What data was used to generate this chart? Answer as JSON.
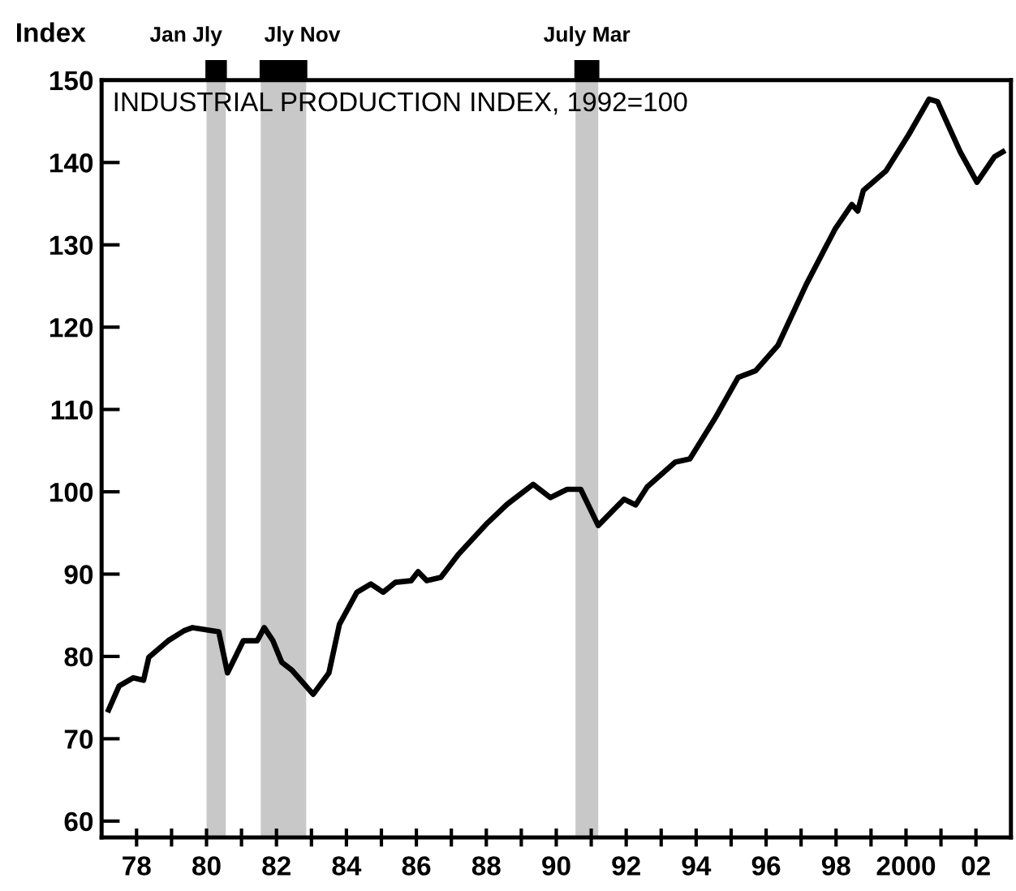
{
  "chart_data": {
    "type": "line",
    "title": "INDUSTRIAL PRODUCTION INDEX, 1992=100",
    "ylabel": "Index",
    "x": [
      1977.2,
      1977.5,
      1977.9,
      1978.2,
      1978.35,
      1978.9,
      1979.35,
      1979.6,
      1980.35,
      1980.6,
      1981.05,
      1981.45,
      1981.65,
      1981.9,
      1982.15,
      1982.45,
      1983.05,
      1983.5,
      1983.8,
      1984.3,
      1984.7,
      1985.05,
      1985.4,
      1985.85,
      1986.05,
      1986.3,
      1986.7,
      1987.2,
      1988.03,
      1988.6,
      1989.34,
      1989.83,
      1990.31,
      1990.7,
      1991.2,
      1991.94,
      1992.27,
      1992.6,
      1993.4,
      1993.82,
      1994.55,
      1995.2,
      1995.7,
      1996.34,
      1997.15,
      1997.97,
      1998.45,
      1998.62,
      1998.78,
      1999.43,
      2000.08,
      2000.66,
      2000.9,
      2001.55,
      2002.03,
      2002.53,
      2002.77
    ],
    "series": [
      {
        "color": "#000000",
        "values": [
          73.5,
          76.4,
          77.4,
          77.1,
          79.9,
          81.9,
          83.1,
          83.5,
          83.0,
          78.0,
          81.9,
          81.9,
          83.5,
          81.9,
          79.3,
          78.3,
          75.4,
          78.0,
          83.9,
          87.8,
          88.8,
          87.8,
          89.0,
          89.2,
          90.3,
          89.2,
          89.6,
          92.4,
          96.2,
          98.5,
          100.9,
          99.3,
          100.3,
          100.3,
          95.9,
          99.1,
          98.4,
          100.6,
          103.6,
          104.0,
          109.0,
          113.9,
          114.7,
          117.8,
          125.2,
          131.9,
          134.9,
          134.1,
          136.6,
          139.0,
          143.4,
          147.7,
          147.4,
          141.3,
          137.6,
          140.7,
          141.3
        ]
      }
    ],
    "xlim": [
      1977,
      2003
    ],
    "xticks": [
      {
        "value": 1978,
        "label": "78"
      },
      {
        "value": 1979,
        "label": null
      },
      {
        "value": 1980,
        "label": "80"
      },
      {
        "value": 1981,
        "label": null
      },
      {
        "value": 1982,
        "label": "82"
      },
      {
        "value": 1983,
        "label": null
      },
      {
        "value": 1984,
        "label": "84"
      },
      {
        "value": 1985,
        "label": null
      },
      {
        "value": 1986,
        "label": "86"
      },
      {
        "value": 1987,
        "label": null
      },
      {
        "value": 1988,
        "label": "88"
      },
      {
        "value": 1989,
        "label": null
      },
      {
        "value": 1990,
        "label": "90"
      },
      {
        "value": 1991,
        "label": null
      },
      {
        "value": 1992,
        "label": "92"
      },
      {
        "value": 1993,
        "label": null
      },
      {
        "value": 1994,
        "label": "94"
      },
      {
        "value": 1995,
        "label": null
      },
      {
        "value": 1996,
        "label": "96"
      },
      {
        "value": 1997,
        "label": null
      },
      {
        "value": 1998,
        "label": "98"
      },
      {
        "value": 1999,
        "label": null
      },
      {
        "value": 2000,
        "label": "2000"
      },
      {
        "value": 2001,
        "label": null
      },
      {
        "value": 2002,
        "label": "02"
      }
    ],
    "ylim": [
      58,
      150
    ],
    "yticks": [
      60,
      70,
      80,
      90,
      100,
      110,
      120,
      130,
      140,
      150
    ],
    "bands": [
      {
        "axis": "x",
        "from": 1980.0,
        "to": 1980.55,
        "label": "Jan Jly",
        "color": "#c8c8c8"
      },
      {
        "axis": "x",
        "from": 1981.55,
        "to": 1982.85,
        "label": "Jly Nov",
        "color": "#c8c8c8"
      },
      {
        "axis": "x",
        "from": 1990.55,
        "to": 1991.2,
        "label": "July Mar",
        "color": "#c8c8c8"
      }
    ],
    "line_style": "solid",
    "marker": "none",
    "grid": false,
    "legend": false
  }
}
